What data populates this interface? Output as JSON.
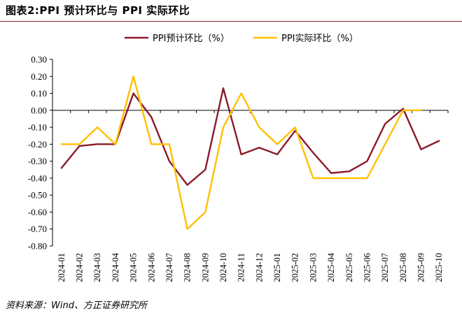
{
  "header": {
    "title": "图表2:PPI 预计环比与 PPI 实际环比"
  },
  "footer": {
    "source": "资料来源：Wind、方正证券研究所"
  },
  "chart_data": {
    "type": "line",
    "xlabel": "",
    "ylabel": "",
    "ylim": [
      -0.8,
      0.3
    ],
    "y_ticks": [
      "0.30",
      "0.20",
      "0.10",
      "0.00",
      "-0.10",
      "-0.20",
      "-0.30",
      "-0.40",
      "-0.50",
      "-0.60",
      "-0.70",
      "-0.80"
    ],
    "y_tick_values": [
      0.3,
      0.2,
      0.1,
      0.0,
      -0.1,
      -0.2,
      -0.3,
      -0.4,
      -0.5,
      -0.6,
      -0.7,
      -0.8
    ],
    "grid": false,
    "legend_position": "top-center",
    "categories": [
      "2024-01",
      "2024-02",
      "2024-03",
      "2024-04",
      "2024-05",
      "2024-06",
      "2024-07",
      "2024-08",
      "2024-09",
      "2024-10",
      "2024-11",
      "2024-12",
      "2025-01",
      "2025-02",
      "2025-03",
      "2025-04",
      "2025-05",
      "2025-06",
      "2025-07",
      "2025-08",
      "2025-09",
      "2025-10"
    ],
    "series": [
      {
        "name": "PPI预计环比（%）",
        "color": "#8b1a2b",
        "values": [
          -0.34,
          -0.21,
          -0.2,
          -0.2,
          0.1,
          -0.04,
          -0.3,
          -0.44,
          -0.35,
          0.13,
          -0.26,
          -0.22,
          -0.26,
          -0.12,
          -0.25,
          -0.37,
          -0.36,
          -0.3,
          -0.08,
          0.01,
          -0.23,
          -0.18
        ]
      },
      {
        "name": "PPI实际环比（%）",
        "color": "#ffc000",
        "values": [
          -0.2,
          -0.2,
          -0.1,
          -0.2,
          0.2,
          -0.2,
          -0.2,
          -0.7,
          -0.6,
          -0.1,
          0.1,
          -0.1,
          -0.2,
          -0.1,
          -0.4,
          -0.4,
          -0.4,
          -0.4,
          -0.2,
          0.0,
          0.0,
          null
        ]
      }
    ]
  }
}
